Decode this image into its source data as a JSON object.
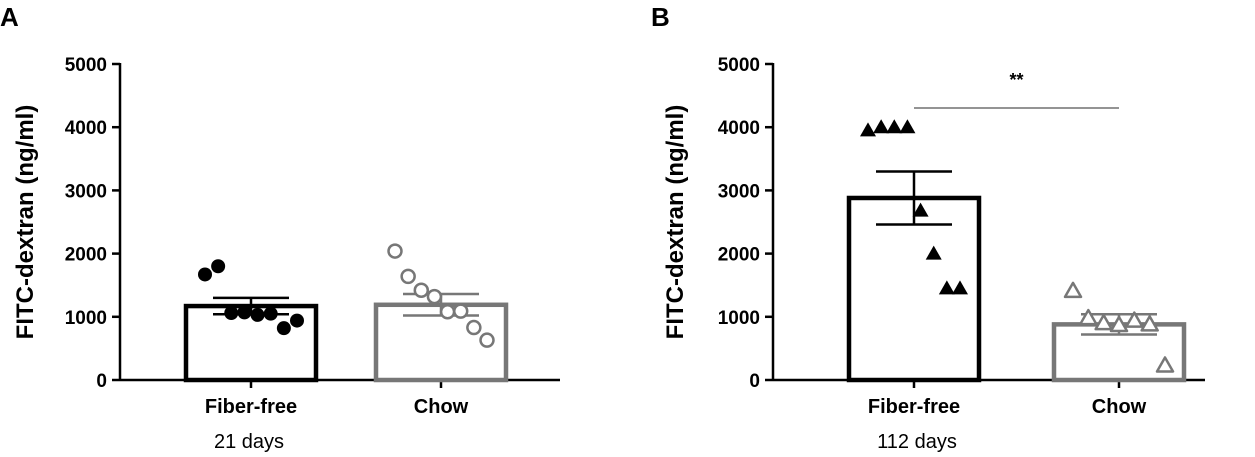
{
  "chart_data": [
    {
      "type": "bar",
      "panel": "A",
      "ylabel": "FITC-dextran (ng/ml)",
      "ylim": [
        0,
        5000
      ],
      "yticks": [
        0,
        1000,
        2000,
        3000,
        4000,
        5000
      ],
      "categories": [
        "Fiber-free",
        "Chow"
      ],
      "group_label": "21 days",
      "bar_colors": [
        "#000000",
        "#777777"
      ],
      "markers": [
        "circle-filled",
        "circle-open"
      ],
      "values": [
        1170,
        1190
      ],
      "sem": [
        130,
        170
      ],
      "points": [
        [
          1670,
          1800,
          1060,
          1070,
          1030,
          1050,
          820,
          940
        ],
        [
          2040,
          1640,
          1420,
          1320,
          1080,
          1090,
          830,
          630
        ]
      ],
      "significance": ""
    },
    {
      "type": "bar",
      "panel": "B",
      "ylabel": "FITC-dextran (ng/ml)",
      "ylim": [
        0,
        5000
      ],
      "yticks": [
        0,
        1000,
        2000,
        3000,
        4000,
        5000
      ],
      "categories": [
        "Fiber-free",
        "Chow"
      ],
      "group_label": "112 days",
      "bar_colors": [
        "#000000",
        "#777777"
      ],
      "markers": [
        "triangle-filled",
        "triangle-open"
      ],
      "values": [
        2880,
        880
      ],
      "sem": [
        420,
        160
      ],
      "points": [
        [
          3950,
          4000,
          4000,
          4000,
          2680,
          2000,
          1450,
          1450
        ],
        [
          1410,
          980,
          900,
          870,
          940,
          880,
          230
        ]
      ],
      "significance": "**"
    }
  ]
}
